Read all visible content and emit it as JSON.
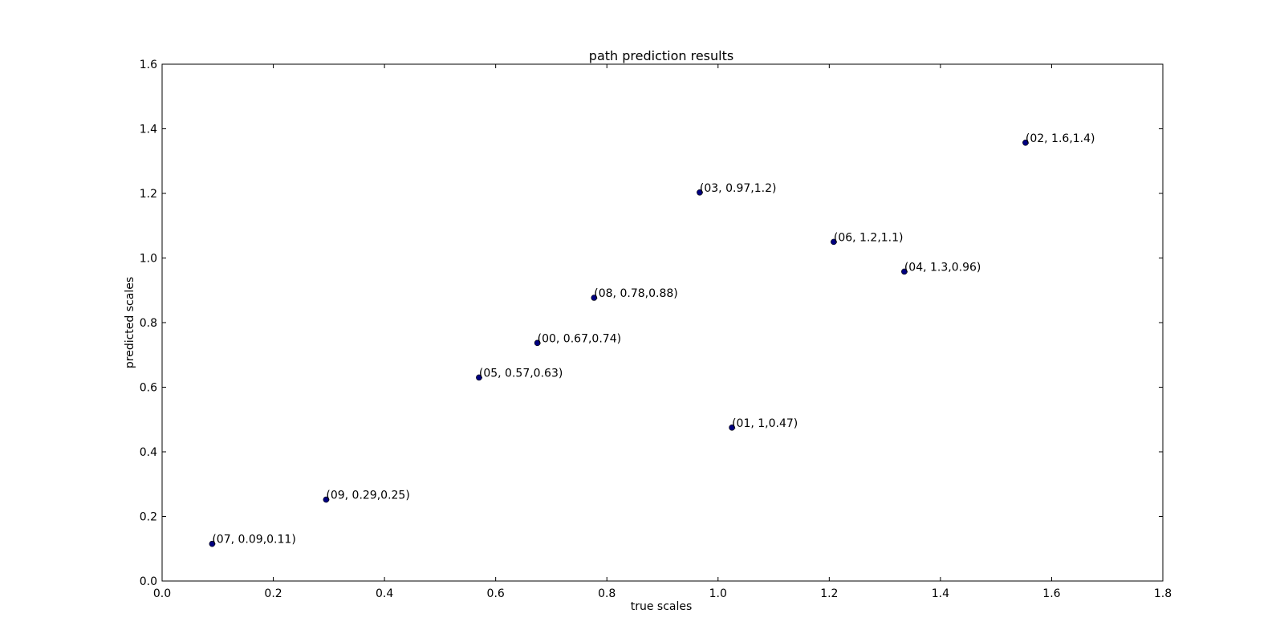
{
  "chart_data": {
    "type": "scatter",
    "title": "path prediction results",
    "xlabel": "true scales",
    "ylabel": "predicted scales",
    "xlim": [
      0,
      1.8
    ],
    "ylim": [
      0,
      1.6
    ],
    "xticks": [
      "0.0",
      "0.2",
      "0.4",
      "0.6",
      "0.8",
      "1.0",
      "1.2",
      "1.4",
      "1.6",
      "1.8"
    ],
    "yticks": [
      "0.0",
      "0.2",
      "0.4",
      "0.6",
      "0.8",
      "1.0",
      "1.2",
      "1.4",
      "1.6"
    ],
    "grid": false,
    "marker_color": "#000080",
    "points": [
      {
        "x": 0.09,
        "y": 0.115,
        "label": "(07, 0.09,0.11)"
      },
      {
        "x": 0.295,
        "y": 0.252,
        "label": "(09, 0.29,0.25)"
      },
      {
        "x": 0.57,
        "y": 0.63,
        "label": "(05, 0.57,0.63)"
      },
      {
        "x": 0.675,
        "y": 0.737,
        "label": "(00, 0.67,0.74)"
      },
      {
        "x": 0.777,
        "y": 0.877,
        "label": "(08, 0.78,0.88)"
      },
      {
        "x": 0.967,
        "y": 1.203,
        "label": "(03, 0.97,1.2)"
      },
      {
        "x": 1.025,
        "y": 0.475,
        "label": "(01, 1,0.47)"
      },
      {
        "x": 1.208,
        "y": 1.05,
        "label": "(06, 1.2,1.1)"
      },
      {
        "x": 1.335,
        "y": 0.958,
        "label": "(04, 1.3,0.96)"
      },
      {
        "x": 1.553,
        "y": 1.357,
        "label": "(02, 1.6,1.4)"
      }
    ]
  }
}
